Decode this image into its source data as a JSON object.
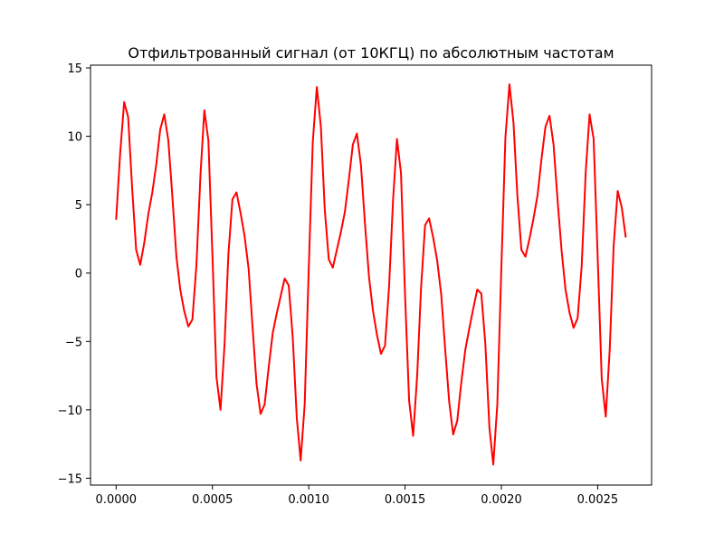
{
  "chart_data": {
    "type": "line",
    "title": "Отфильтрованный сигнал (от 10КГЦ) по абсолютным частотам",
    "xlabel": "",
    "ylabel": "",
    "xlim": [
      -0.000133,
      0.00278
    ],
    "ylim": [
      -15.5,
      15.2
    ],
    "grid": false,
    "x_ticks": [
      {
        "value": 0.0,
        "label": "0.0000"
      },
      {
        "value": 0.0005,
        "label": "0.0005"
      },
      {
        "value": 0.001,
        "label": "0.0010"
      },
      {
        "value": 0.0015,
        "label": "0.0015"
      },
      {
        "value": 0.002,
        "label": "0.0020"
      },
      {
        "value": 0.0025,
        "label": "0.0025"
      }
    ],
    "y_ticks": [
      {
        "value": 15,
        "label": "15"
      },
      {
        "value": 10,
        "label": "10"
      },
      {
        "value": 5,
        "label": "5"
      },
      {
        "value": 0,
        "label": "0"
      },
      {
        "value": -5,
        "label": "−5"
      },
      {
        "value": -10,
        "label": "−10"
      },
      {
        "value": -15,
        "label": "−15"
      }
    ],
    "series": [
      {
        "color": "#ff0000",
        "x": [
          0.0,
          2.08e-05,
          4.17e-05,
          6.25e-05,
          8.33e-05,
          0.000104,
          0.000125,
          0.000146,
          0.000167,
          0.000188,
          0.000208,
          0.000229,
          0.00025,
          0.000271,
          0.000292,
          0.000313,
          0.000333,
          0.000354,
          0.000375,
          0.000396,
          0.000417,
          0.000438,
          0.000458,
          0.000479,
          0.0005,
          0.000521,
          0.000542,
          0.000563,
          0.000583,
          0.000604,
          0.000625,
          0.000646,
          0.000667,
          0.000688,
          0.000708,
          0.000729,
          0.00075,
          0.000771,
          0.000792,
          0.000813,
          0.000833,
          0.000854,
          0.000875,
          0.000896,
          0.000917,
          0.000938,
          0.000958,
          0.000979,
          0.001,
          0.001021,
          0.001042,
          0.001063,
          0.001083,
          0.001104,
          0.001125,
          0.001146,
          0.001167,
          0.001188,
          0.001208,
          0.001229,
          0.00125,
          0.001271,
          0.001292,
          0.001313,
          0.001333,
          0.001354,
          0.001375,
          0.001396,
          0.001417,
          0.001438,
          0.001458,
          0.001479,
          0.0015,
          0.001521,
          0.001542,
          0.001563,
          0.001583,
          0.001604,
          0.001625,
          0.001646,
          0.001667,
          0.001688,
          0.001708,
          0.001729,
          0.00175,
          0.001771,
          0.001792,
          0.001813,
          0.001833,
          0.001854,
          0.001875,
          0.001896,
          0.001917,
          0.001938,
          0.001958,
          0.001979,
          0.002,
          0.002021,
          0.002042,
          0.002063,
          0.002083,
          0.002104,
          0.002125,
          0.002146,
          0.002167,
          0.002188,
          0.002208,
          0.002229,
          0.00225,
          0.002271,
          0.002292,
          0.002313,
          0.002333,
          0.002354,
          0.002375,
          0.002396,
          0.002417,
          0.002438,
          0.002458,
          0.002479,
          0.0025,
          0.002521,
          0.002542,
          0.002563,
          0.002583,
          0.002604,
          0.002625,
          0.002646
        ],
        "y": [
          3.9,
          8.7,
          12.5,
          11.4,
          6.2,
          1.7,
          0.6,
          2.2,
          4.3,
          5.9,
          7.9,
          10.5,
          11.6,
          9.7,
          5.6,
          1.2,
          -1.2,
          -2.8,
          -3.9,
          -3.4,
          0.6,
          7.2,
          11.9,
          9.7,
          1.3,
          -7.6,
          -10.0,
          -5.2,
          1.4,
          5.4,
          5.9,
          4.4,
          2.7,
          0.3,
          -3.9,
          -8.1,
          -10.3,
          -9.6,
          -6.9,
          -4.4,
          -3.0,
          -1.7,
          -0.4,
          -0.9,
          -4.7,
          -10.6,
          -13.7,
          -9.6,
          0.3,
          9.6,
          13.6,
          10.7,
          4.7,
          1.0,
          0.4,
          1.7,
          3.0,
          4.5,
          6.8,
          9.4,
          10.2,
          7.9,
          3.6,
          -0.3,
          -2.7,
          -4.5,
          -5.9,
          -5.3,
          -1.0,
          5.4,
          9.8,
          7.3,
          -1.6,
          -9.3,
          -11.9,
          -7.5,
          -1.1,
          3.5,
          4.0,
          2.6,
          0.9,
          -1.6,
          -5.5,
          -9.4,
          -11.8,
          -10.8,
          -8.0,
          -5.6,
          -4.1,
          -2.6,
          -1.2,
          -1.5,
          -5.2,
          -11.3,
          -14.0,
          -9.6,
          0.4,
          9.9,
          13.8,
          11.0,
          5.7,
          1.7,
          1.2,
          2.5,
          4.0,
          5.7,
          8.3,
          10.7,
          11.5,
          9.4,
          5.3,
          1.6,
          -1.2,
          -2.9,
          -4.0,
          -3.3,
          0.5,
          7.4,
          11.6,
          9.8,
          1.2,
          -7.7,
          -10.5,
          -5.5,
          2.0,
          6.0,
          4.8,
          2.6
        ]
      }
    ]
  }
}
